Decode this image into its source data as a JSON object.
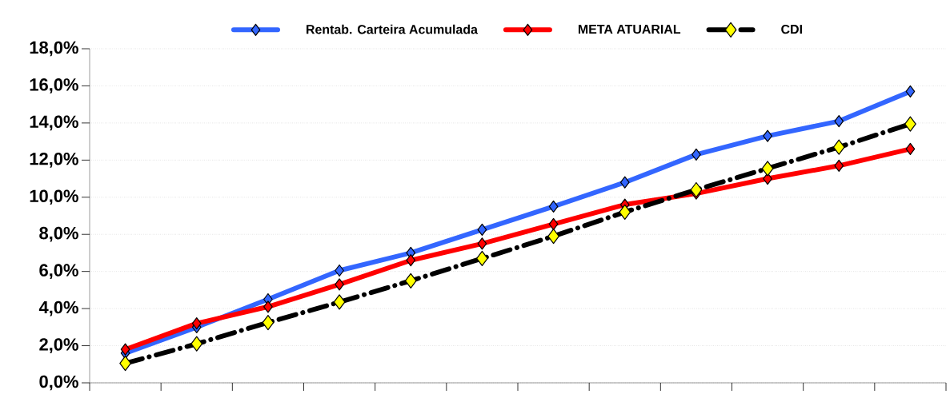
{
  "chart_data": {
    "type": "line",
    "categories": [
      null,
      null,
      null,
      null,
      null,
      null,
      null,
      null,
      null,
      null,
      null,
      null
    ],
    "series": [
      {
        "name": "Rentab. Carteira Acumulada",
        "color": "#3366ff",
        "values": [
          1.6,
          3.0,
          4.5,
          6.05,
          7.0,
          8.25,
          9.5,
          10.8,
          12.3,
          13.3,
          14.1,
          15.7
        ]
      },
      {
        "name": "META ATUARIAL",
        "color": "#ff0000",
        "values": [
          1.8,
          3.2,
          4.1,
          5.3,
          6.6,
          7.5,
          8.55,
          9.6,
          10.2,
          11.0,
          11.7,
          12.6
        ]
      },
      {
        "name": "CDI",
        "color": "#000000",
        "line_style": "dashed",
        "colors": [
          "#ffff00",
          "#ffff00",
          "#ffff00",
          "#ffff00",
          "#ffff00",
          "#ffff00",
          "#ffff00",
          "#ffff00",
          "#ffff00",
          "#ffff00",
          "#ffff00",
          "#ffff00"
        ],
        "values": [
          1.05,
          2.1,
          3.25,
          4.35,
          5.5,
          6.7,
          7.9,
          9.2,
          10.4,
          11.55,
          12.7,
          13.95
        ]
      }
    ],
    "ylim": [
      0,
      18
    ],
    "yticks": [
      {
        "value": 0,
        "label": "0,0%"
      },
      {
        "value": 2,
        "label": "2,0%"
      },
      {
        "value": 4,
        "label": "4,0%"
      },
      {
        "value": 6,
        "label": "6,0%"
      },
      {
        "value": 8,
        "label": "8,0%"
      },
      {
        "value": 10,
        "label": "10,0%"
      },
      {
        "value": 12,
        "label": "12,0%"
      },
      {
        "value": 14,
        "label": "14,0%"
      },
      {
        "value": 16,
        "label": "16,0%"
      },
      {
        "value": 18,
        "label": "18,0%"
      }
    ],
    "grid": "y",
    "legend": "top",
    "marker": "diamond",
    "line_style": "solid"
  }
}
